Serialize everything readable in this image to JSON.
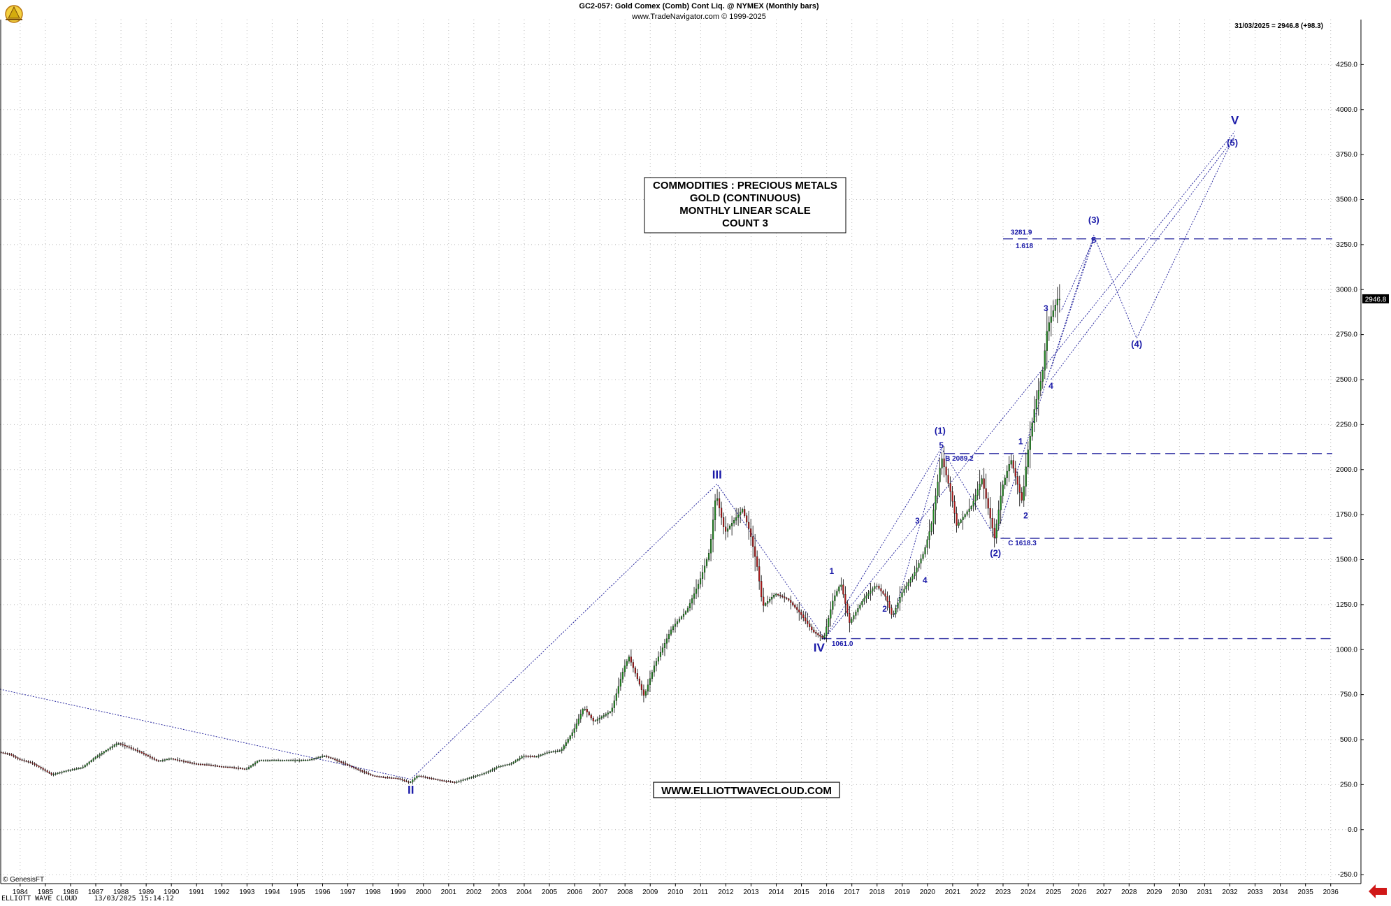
{
  "header": {
    "title": "GC2-057:  Gold Comex (Comb) Cont Liq. @ NYMEX  (Monthly bars)",
    "subtitle": "www.TradeNavigator.com © 1999-2025",
    "last_price_info": "31/03/2025 = 2946.8 (+98.3)"
  },
  "info_box": {
    "lines": [
      "COMMODITIES : PRECIOUS METALS",
      "GOLD (CONTINUOUS)",
      "MONTHLY LINEAR SCALE",
      "COUNT 3"
    ]
  },
  "website_box": "WWW.ELLIOTTWAVECLOUD.COM",
  "footer": {
    "copyright": "© GenesisFT",
    "left_stamp": "ELLIOTT WAVE CLOUD    13/03/2025 15:14:12"
  },
  "colors": {
    "wave_label": "#1a1aa8",
    "candle_up": "#1f8a1f",
    "candle_down": "#b01818",
    "grid": "#b8b8b8",
    "dashed_level": "#2a2aa0",
    "price_tag_bg": "#000000",
    "marker_arrow": "#d01818"
  },
  "chart_data": {
    "type": "candlestick",
    "title": "GC2-057:  Gold Comex (Comb) Cont Liq. @ NYMEX  (Monthly bars)",
    "x_axis": {
      "ticks": [
        "1984",
        "1985",
        "1986",
        "1987",
        "1988",
        "1989",
        "1990",
        "1991",
        "1992",
        "1993",
        "1994",
        "1995",
        "1996",
        "1997",
        "1998",
        "1999",
        "2000",
        "2001",
        "2002",
        "2003",
        "2004",
        "2005",
        "2006",
        "2007",
        "2008",
        "2009",
        "2010",
        "2011",
        "2012",
        "2013",
        "2014",
        "2015",
        "2016",
        "2017",
        "2018",
        "2019",
        "2020",
        "2021",
        "2022",
        "2023",
        "2024",
        "2025",
        "2026",
        "2027",
        "2028",
        "2029",
        "2030",
        "2031",
        "2032",
        "2033",
        "2034",
        "2035",
        "2036"
      ],
      "range": [
        1983.2,
        2037.2
      ]
    },
    "y_axis": {
      "ticks": [
        "4250.0",
        "4000.0",
        "3750.0",
        "3500.0",
        "3250.0",
        "3000.0",
        "2750.0",
        "2500.0",
        "2250.0",
        "2000.0",
        "1750.0",
        "1500.0",
        "1250.0",
        "1000.0",
        "750.0",
        "500.0",
        "250.0",
        "0.0",
        "-250.0"
      ],
      "range": [
        -300,
        4500
      ],
      "grid": true,
      "scale": "linear"
    },
    "price_path": [
      [
        1983.2,
        430
      ],
      [
        1983.6,
        420
      ],
      [
        1984.0,
        390
      ],
      [
        1984.5,
        370
      ],
      [
        1985.0,
        330
      ],
      [
        1985.3,
        305
      ],
      [
        1985.8,
        325
      ],
      [
        1986.5,
        345
      ],
      [
        1987.0,
        400
      ],
      [
        1987.5,
        445
      ],
      [
        1987.9,
        480
      ],
      [
        1988.3,
        460
      ],
      [
        1988.8,
        430
      ],
      [
        1989.5,
        380
      ],
      [
        1990.0,
        395
      ],
      [
        1990.5,
        380
      ],
      [
        1991.0,
        365
      ],
      [
        1991.5,
        360
      ],
      [
        1992.0,
        350
      ],
      [
        1992.5,
        345
      ],
      [
        1993.0,
        335
      ],
      [
        1993.5,
        385
      ],
      [
        1994.0,
        385
      ],
      [
        1994.5,
        385
      ],
      [
        1995.0,
        385
      ],
      [
        1995.5,
        387
      ],
      [
        1996.1,
        410
      ],
      [
        1996.5,
        390
      ],
      [
        1997.0,
        360
      ],
      [
        1997.5,
        330
      ],
      [
        1998.0,
        300
      ],
      [
        1998.5,
        290
      ],
      [
        1999.0,
        285
      ],
      [
        1999.5,
        260
      ],
      [
        1999.8,
        300
      ],
      [
        2000.3,
        285
      ],
      [
        2000.8,
        272
      ],
      [
        2001.3,
        262
      ],
      [
        2001.8,
        285
      ],
      [
        2002.5,
        315
      ],
      [
        2003.0,
        350
      ],
      [
        2003.5,
        365
      ],
      [
        2004.0,
        410
      ],
      [
        2004.5,
        405
      ],
      [
        2005.0,
        430
      ],
      [
        2005.5,
        440
      ],
      [
        2006.0,
        550
      ],
      [
        2006.4,
        680
      ],
      [
        2006.8,
        600
      ],
      [
        2007.5,
        660
      ],
      [
        2008.0,
        900
      ],
      [
        2008.2,
        960
      ],
      [
        2008.8,
        740
      ],
      [
        2009.2,
        910
      ],
      [
        2009.9,
        1120
      ],
      [
        2010.5,
        1220
      ],
      [
        2011.0,
        1380
      ],
      [
        2011.4,
        1550
      ],
      [
        2011.65,
        1870
      ],
      [
        2012.0,
        1650
      ],
      [
        2012.7,
        1780
      ],
      [
        2013.0,
        1650
      ],
      [
        2013.3,
        1450
      ],
      [
        2013.5,
        1240
      ],
      [
        2014.0,
        1310
      ],
      [
        2014.5,
        1280
      ],
      [
        2015.0,
        1200
      ],
      [
        2015.5,
        1100
      ],
      [
        2015.92,
        1061
      ],
      [
        2016.3,
        1280
      ],
      [
        2016.6,
        1370
      ],
      [
        2016.95,
        1150
      ],
      [
        2017.5,
        1280
      ],
      [
        2018.0,
        1360
      ],
      [
        2018.4,
        1290
      ],
      [
        2018.65,
        1180
      ],
      [
        2019.0,
        1310
      ],
      [
        2019.5,
        1420
      ],
      [
        2019.9,
        1540
      ],
      [
        2020.2,
        1700
      ],
      [
        2020.6,
        2070
      ],
      [
        2021.0,
        1850
      ],
      [
        2021.2,
        1690
      ],
      [
        2021.8,
        1800
      ],
      [
        2022.2,
        1950
      ],
      [
        2022.7,
        1620
      ],
      [
        2023.0,
        1900
      ],
      [
        2023.35,
        2060
      ],
      [
        2023.8,
        1820
      ],
      [
        2024.0,
        2080
      ],
      [
        2024.3,
        2350
      ],
      [
        2024.6,
        2530
      ],
      [
        2024.8,
        2790
      ],
      [
        2025.0,
        2870
      ],
      [
        2025.2,
        2946.8
      ]
    ],
    "wave_labels": [
      {
        "text": "II",
        "x": 1999.5,
        "y": 200,
        "size": "large"
      },
      {
        "text": "III",
        "x": 2011.65,
        "y": 1950,
        "size": "large"
      },
      {
        "text": "IV",
        "x": 2015.7,
        "y": 990,
        "size": "large"
      },
      {
        "text": "V",
        "x": 2032.2,
        "y": 3920,
        "size": "large"
      },
      {
        "text": "(1)",
        "x": 2020.5,
        "y": 2200,
        "size": "medium"
      },
      {
        "text": "(2)",
        "x": 2022.7,
        "y": 1520,
        "size": "medium"
      },
      {
        "text": "(3)",
        "x": 2026.6,
        "y": 3370,
        "size": "medium"
      },
      {
        "text": "(4)",
        "x": 2028.3,
        "y": 2680,
        "size": "medium"
      },
      {
        "text": "(5)",
        "x": 2032.1,
        "y": 3800,
        "size": "medium"
      },
      {
        "text": "1",
        "x": 2016.2,
        "y": 1420,
        "size": "small"
      },
      {
        "text": "2",
        "x": 2018.3,
        "y": 1210,
        "size": "small"
      },
      {
        "text": "3",
        "x": 2019.6,
        "y": 1700,
        "size": "small"
      },
      {
        "text": "4",
        "x": 2019.9,
        "y": 1370,
        "size": "small"
      },
      {
        "text": "5",
        "x": 2020.55,
        "y": 2120,
        "size": "small"
      },
      {
        "text": "1",
        "x": 2023.7,
        "y": 2140,
        "size": "small"
      },
      {
        "text": "2",
        "x": 2023.9,
        "y": 1730,
        "size": "small"
      },
      {
        "text": "3",
        "x": 2024.7,
        "y": 2880,
        "size": "small"
      },
      {
        "text": "4",
        "x": 2024.9,
        "y": 2450,
        "size": "small"
      },
      {
        "text": "5",
        "x": 2026.6,
        "y": 3260,
        "size": "small"
      }
    ],
    "level_labels": [
      {
        "text": "B 2089.2",
        "x": 2020.7,
        "y": 2050
      },
      {
        "text": "C 1618.3",
        "x": 2023.2,
        "y": 1580
      },
      {
        "text": "1061.0",
        "x": 2016.2,
        "y": 1020
      },
      {
        "text": "3281.9",
        "x": 2023.3,
        "y": 3305
      },
      {
        "text": "1.618",
        "x": 2023.5,
        "y": 3230
      }
    ],
    "horizontal_levels": [
      {
        "y": 3281.9,
        "x_start": 2023.0
      },
      {
        "y": 2089.2,
        "x_start": 2020.7
      },
      {
        "y": 1618.3,
        "x_start": 2022.9
      },
      {
        "y": 1061.0,
        "x_start": 2015.8
      }
    ],
    "projection_paths": [
      [
        [
          1983.2,
          780
        ],
        [
          1999.5,
          280
        ],
        [
          2011.65,
          1920
        ],
        [
          2015.92,
          1061
        ],
        [
          2032.2,
          3880
        ]
      ],
      [
        [
          2015.92,
          1061
        ],
        [
          2020.55,
          2120
        ],
        [
          2022.7,
          1620
        ],
        [
          2026.6,
          3300
        ],
        [
          2028.3,
          2730
        ],
        [
          2032.2,
          3860
        ]
      ],
      [
        [
          2024.9,
          2560
        ],
        [
          2026.6,
          3280
        ],
        [
          2025.3,
          2880
        ]
      ],
      [
        [
          2018.65,
          1180
        ],
        [
          2020.55,
          2110
        ]
      ],
      [
        [
          2024.9,
          2500
        ],
        [
          2032.2,
          3850
        ]
      ]
    ],
    "price_tag": {
      "text": "2946.8",
      "y": 2946.8
    }
  }
}
